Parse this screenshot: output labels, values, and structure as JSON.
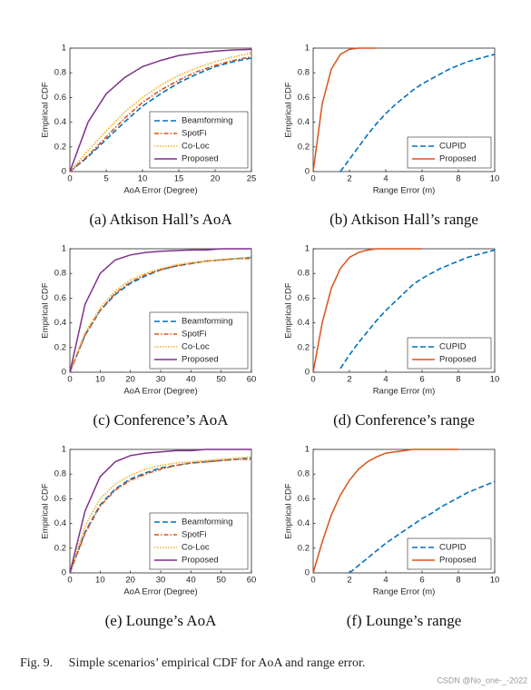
{
  "chart_data": [
    {
      "type": "line",
      "caption": "(a) Atkison Hall’s AoA",
      "xlabel": "AoA Error (Degree)",
      "ylabel": "Empirical CDF",
      "x": [
        0,
        2.5,
        5,
        7.5,
        10,
        12.5,
        15,
        17.5,
        20,
        22.5,
        25
      ],
      "xlim": [
        0,
        25
      ],
      "xticks": [
        0,
        5,
        10,
        15,
        20,
        25
      ],
      "ylim": [
        0,
        1
      ],
      "yticks": [
        0,
        0.2,
        0.4,
        0.6,
        0.8,
        1
      ],
      "legend": "lower right",
      "series": [
        {
          "name": "Beamforming",
          "color": "#0072BD",
          "dash": "dashed",
          "values": [
            0,
            0.12,
            0.26,
            0.4,
            0.53,
            0.63,
            0.72,
            0.79,
            0.85,
            0.89,
            0.92
          ]
        },
        {
          "name": "SpotFi",
          "color": "#D95319",
          "dash": "dashdot",
          "values": [
            0,
            0.13,
            0.28,
            0.43,
            0.56,
            0.66,
            0.74,
            0.81,
            0.86,
            0.9,
            0.93
          ]
        },
        {
          "name": "Co-Loc",
          "color": "#EDB120",
          "dash": "dotted",
          "values": [
            0,
            0.17,
            0.33,
            0.48,
            0.6,
            0.7,
            0.78,
            0.84,
            0.89,
            0.93,
            0.96
          ]
        },
        {
          "name": "Proposed",
          "color": "#7E2F8E",
          "dash": "solid",
          "values": [
            0,
            0.4,
            0.63,
            0.76,
            0.85,
            0.9,
            0.94,
            0.96,
            0.975,
            0.985,
            0.99
          ]
        }
      ]
    },
    {
      "type": "line",
      "caption": "(b) Atkison Hall’s range",
      "xlabel": "Range Error (m)",
      "ylabel": "Empirical CDF",
      "x": [
        0,
        0.5,
        1,
        1.5,
        2,
        2.5,
        3,
        3.5,
        4,
        4.5,
        5,
        5.5,
        6,
        6.5,
        7,
        7.5,
        8,
        8.5,
        9,
        9.5,
        10
      ],
      "xlim": [
        0,
        10
      ],
      "xticks": [
        0,
        2,
        4,
        6,
        8,
        10
      ],
      "ylim": [
        0,
        1
      ],
      "yticks": [
        0,
        0.2,
        0.4,
        0.6,
        0.8,
        1
      ],
      "legend": "lower right",
      "series": [
        {
          "name": "CUPID",
          "color": "#0072BD",
          "dash": "dashed",
          "values": [
            null,
            null,
            null,
            0,
            0.1,
            0.2,
            0.3,
            0.39,
            0.47,
            0.54,
            0.6,
            0.66,
            0.71,
            0.75,
            0.79,
            0.83,
            0.86,
            0.89,
            0.91,
            0.93,
            0.95
          ]
        },
        {
          "name": "Proposed",
          "color": "#D95319",
          "dash": "solid",
          "values": [
            0,
            0.55,
            0.83,
            0.95,
            0.99,
            1,
            1,
            1,
            null,
            null,
            null,
            null,
            null,
            null,
            null,
            null,
            null,
            null,
            null,
            null,
            null
          ]
        }
      ]
    },
    {
      "type": "line",
      "caption": "(c) Conference’s AoA",
      "xlabel": "AoA Error (Degree)",
      "ylabel": "Empirical CDF",
      "x": [
        0,
        5,
        10,
        15,
        20,
        25,
        30,
        35,
        40,
        45,
        50,
        55,
        60
      ],
      "xlim": [
        0,
        60
      ],
      "xticks": [
        0,
        10,
        20,
        30,
        40,
        50,
        60
      ],
      "ylim": [
        0,
        1
      ],
      "yticks": [
        0,
        0.2,
        0.4,
        0.6,
        0.8,
        1
      ],
      "legend": "lower right",
      "series": [
        {
          "name": "Beamforming",
          "color": "#0072BD",
          "dash": "dashed",
          "values": [
            0,
            0.3,
            0.5,
            0.63,
            0.72,
            0.78,
            0.83,
            0.86,
            0.88,
            0.9,
            0.91,
            0.92,
            0.93
          ]
        },
        {
          "name": "SpotFi",
          "color": "#D95319",
          "dash": "dashdot",
          "values": [
            0,
            0.3,
            0.5,
            0.64,
            0.73,
            0.79,
            0.83,
            0.86,
            0.88,
            0.9,
            0.91,
            0.92,
            0.92
          ]
        },
        {
          "name": "Co-Loc",
          "color": "#EDB120",
          "dash": "dotted",
          "values": [
            0,
            0.32,
            0.52,
            0.66,
            0.75,
            0.8,
            0.84,
            0.87,
            0.89,
            0.9,
            0.91,
            0.92,
            0.93
          ]
        },
        {
          "name": "Proposed",
          "color": "#7E2F8E",
          "dash": "solid",
          "values": [
            0,
            0.55,
            0.8,
            0.91,
            0.95,
            0.97,
            0.98,
            0.985,
            0.99,
            0.99,
            1,
            1,
            1
          ]
        }
      ]
    },
    {
      "type": "line",
      "caption": "(d) Conference’s range",
      "xlabel": "Range Error (m)",
      "ylabel": "Empirical CDF",
      "x": [
        0,
        0.5,
        1,
        1.5,
        2,
        2.5,
        3,
        3.5,
        4,
        4.5,
        5,
        5.5,
        6,
        6.5,
        7,
        7.5,
        8,
        8.5,
        9,
        9.5,
        10
      ],
      "xlim": [
        0,
        10
      ],
      "xticks": [
        0,
        2,
        4,
        6,
        8,
        10
      ],
      "ylim": [
        0,
        1
      ],
      "yticks": [
        0,
        0.2,
        0.4,
        0.6,
        0.8,
        1
      ],
      "legend": "lower right",
      "series": [
        {
          "name": "CUPID",
          "color": "#0072BD",
          "dash": "dashed",
          "values": [
            null,
            null,
            null,
            0.03,
            0.14,
            0.24,
            0.33,
            0.42,
            0.5,
            0.57,
            0.64,
            0.71,
            0.76,
            0.8,
            0.84,
            0.87,
            0.9,
            0.93,
            0.95,
            0.97,
            0.99
          ]
        },
        {
          "name": "Proposed",
          "color": "#D95319",
          "dash": "solid",
          "values": [
            0,
            0.4,
            0.68,
            0.84,
            0.93,
            0.97,
            0.99,
            1,
            1,
            1,
            1,
            1,
            1,
            null,
            null,
            null,
            null,
            null,
            null,
            null,
            null
          ]
        }
      ]
    },
    {
      "type": "line",
      "caption": "(e) Lounge’s AoA",
      "xlabel": "AoA Error (Degree)",
      "ylabel": "Empirical CDF",
      "x": [
        0,
        5,
        10,
        15,
        20,
        25,
        30,
        35,
        40,
        45,
        50,
        55,
        60
      ],
      "xlim": [
        0,
        60
      ],
      "xticks": [
        0,
        10,
        20,
        30,
        40,
        50,
        60
      ],
      "ylim": [
        0,
        1
      ],
      "yticks": [
        0,
        0.2,
        0.4,
        0.6,
        0.8,
        1
      ],
      "legend": "lower right",
      "series": [
        {
          "name": "Beamforming",
          "color": "#0072BD",
          "dash": "dashed",
          "values": [
            0,
            0.33,
            0.55,
            0.68,
            0.76,
            0.81,
            0.85,
            0.87,
            0.89,
            0.9,
            0.91,
            0.92,
            0.93
          ]
        },
        {
          "name": "SpotFi",
          "color": "#D95319",
          "dash": "dashdot",
          "values": [
            0,
            0.32,
            0.54,
            0.67,
            0.75,
            0.8,
            0.84,
            0.87,
            0.89,
            0.9,
            0.91,
            0.92,
            0.92
          ]
        },
        {
          "name": "Co-Loc",
          "color": "#EDB120",
          "dash": "dotted",
          "values": [
            0,
            0.38,
            0.6,
            0.72,
            0.79,
            0.84,
            0.87,
            0.89,
            0.9,
            0.91,
            0.92,
            0.93,
            0.94
          ]
        },
        {
          "name": "Proposed",
          "color": "#7E2F8E",
          "dash": "solid",
          "values": [
            0,
            0.5,
            0.78,
            0.9,
            0.95,
            0.97,
            0.98,
            0.99,
            0.99,
            1,
            1,
            1,
            1
          ]
        }
      ]
    },
    {
      "type": "line",
      "caption": "(f) Lounge’s range",
      "xlabel": "Range Error (m)",
      "ylabel": "Empirical CDF",
      "x": [
        0,
        0.5,
        1,
        1.5,
        2,
        2.5,
        3,
        3.5,
        4,
        4.5,
        5,
        5.5,
        6,
        6.5,
        7,
        7.5,
        8,
        8.5,
        9,
        9.5,
        10
      ],
      "xlim": [
        0,
        10
      ],
      "xticks": [
        0,
        2,
        4,
        6,
        8,
        10
      ],
      "ylim": [
        0,
        1
      ],
      "yticks": [
        0,
        0.2,
        0.4,
        0.6,
        0.8,
        1
      ],
      "legend": "lower right",
      "series": [
        {
          "name": "CUPID",
          "color": "#0072BD",
          "dash": "dashed",
          "values": [
            null,
            null,
            null,
            null,
            0,
            0.06,
            0.12,
            0.18,
            0.24,
            0.29,
            0.34,
            0.39,
            0.44,
            0.48,
            0.53,
            0.57,
            0.61,
            0.65,
            0.68,
            0.71,
            0.74
          ]
        },
        {
          "name": "Proposed",
          "color": "#D95319",
          "dash": "solid",
          "values": [
            0,
            0.25,
            0.47,
            0.63,
            0.75,
            0.84,
            0.9,
            0.94,
            0.97,
            0.98,
            0.99,
            1,
            1,
            1,
            1,
            1,
            1,
            null,
            null,
            null,
            null
          ]
        }
      ]
    }
  ],
  "figure_caption": "Fig. 9.     Simple scenarios’ empirical CDF for AoA and range error.",
  "watermark": "CSDN @No_one-_-2022"
}
